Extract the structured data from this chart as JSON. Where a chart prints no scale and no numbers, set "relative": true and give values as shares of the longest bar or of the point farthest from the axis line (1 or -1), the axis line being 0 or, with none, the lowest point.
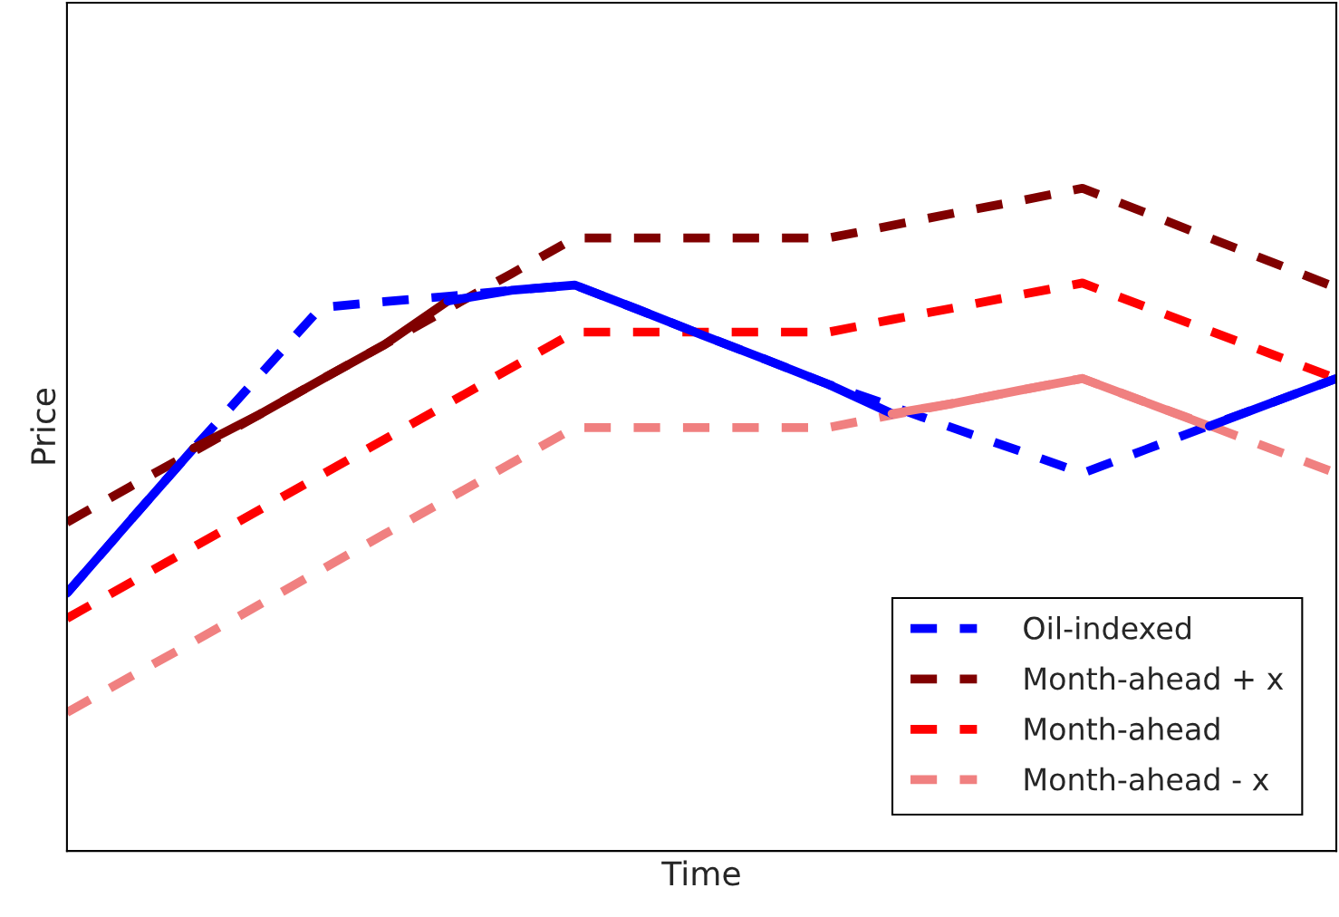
{
  "chart_data": {
    "type": "line",
    "xlabel": "Time",
    "ylabel": "Price",
    "relative": true,
    "grid": false,
    "legend": "bottom right",
    "categories": [
      null,
      null,
      null,
      null,
      null,
      null,
      null,
      null,
      null,
      null,
      null,
      null,
      null,
      null,
      null,
      null,
      null,
      null,
      null,
      null,
      null
    ],
    "series": [
      {
        "name": "Oil-indexed",
        "color": "#0000ff",
        "line_style": "dashed",
        "values": [
          0.389,
          0.499,
          0.608,
          0.714,
          0.82,
          0.829,
          0.837,
          0.846,
          0.854,
          0.817,
          0.779,
          0.742,
          0.704,
          0.671,
          0.637,
          0.604,
          0.57,
          0.606,
          0.642,
          0.677,
          0.713
        ]
      },
      {
        "name": "Month-ahead + x",
        "color": "#800000",
        "line_style": "dashed",
        "values": [
          0.496,
          0.55,
          0.603,
          0.657,
          0.711,
          0.764,
          0.818,
          0.871,
          0.925,
          0.925,
          0.925,
          0.925,
          0.925,
          0.944,
          0.963,
          0.981,
          1.0,
          0.963,
          0.925,
          0.888,
          0.85
        ]
      },
      {
        "name": "Month-ahead",
        "color": "#ff0000",
        "line_style": "dashed",
        "values": [
          0.351,
          0.405,
          0.459,
          0.513,
          0.567,
          0.621,
          0.675,
          0.729,
          0.783,
          0.783,
          0.783,
          0.783,
          0.783,
          0.802,
          0.82,
          0.839,
          0.857,
          0.821,
          0.785,
          0.749,
          0.713
        ]
      },
      {
        "name": "Month-ahead - x",
        "color": "#f08080",
        "line_style": "dashed",
        "values": [
          0.209,
          0.263,
          0.316,
          0.37,
          0.424,
          0.478,
          0.531,
          0.585,
          0.639,
          0.639,
          0.639,
          0.639,
          0.639,
          0.658,
          0.676,
          0.695,
          0.713,
          0.677,
          0.642,
          0.606,
          0.57
        ]
      },
      {
        "color": "#0000ff",
        "line_style": "solid",
        "values": [
          0.389,
          0.499,
          0.608,
          null,
          null,
          null,
          null,
          null,
          null,
          null,
          null,
          null,
          null,
          null,
          null,
          null,
          null,
          null,
          null,
          null,
          null
        ]
      },
      {
        "color": "#800000",
        "line_style": "solid",
        "values": [
          null,
          null,
          0.608,
          0.657,
          0.711,
          0.764,
          0.83,
          null,
          null,
          null,
          null,
          null,
          null,
          null,
          null,
          null,
          null,
          null,
          null,
          null,
          null
        ]
      },
      {
        "color": "#0000ff",
        "line_style": "solid",
        "values": [
          null,
          null,
          null,
          null,
          null,
          null,
          0.83,
          0.846,
          0.854,
          0.817,
          0.779,
          0.742,
          0.704,
          0.66,
          null,
          null,
          null,
          null,
          null,
          null,
          null
        ]
      },
      {
        "color": "#f08080",
        "line_style": "solid",
        "values": [
          null,
          null,
          null,
          null,
          null,
          null,
          null,
          null,
          null,
          null,
          null,
          null,
          null,
          0.66,
          0.676,
          0.695,
          0.713,
          0.677,
          0.641,
          null,
          null
        ]
      },
      {
        "color": "#0000ff",
        "line_style": "solid",
        "values": [
          null,
          null,
          null,
          null,
          null,
          null,
          null,
          null,
          null,
          null,
          null,
          null,
          null,
          null,
          null,
          null,
          null,
          null,
          0.641,
          0.677,
          0.713
        ]
      }
    ]
  }
}
